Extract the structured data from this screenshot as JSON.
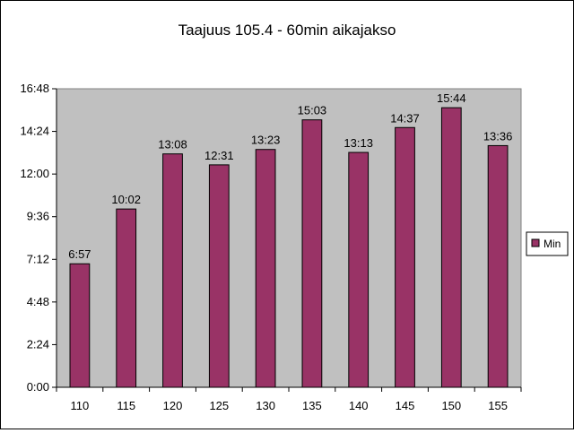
{
  "chart_data": {
    "type": "bar",
    "title": "Taajuus 105.4 - 60min aikajakso",
    "xlabel": "",
    "ylabel": "",
    "categories": [
      "110",
      "115",
      "120",
      "125",
      "130",
      "135",
      "140",
      "145",
      "150",
      "155"
    ],
    "series": [
      {
        "name": "Min",
        "values_minutes": [
          6.95,
          10.0333,
          13.1333,
          12.5167,
          13.3833,
          15.05,
          13.2167,
          14.6167,
          15.7333,
          13.6
        ],
        "data_labels": [
          "6:57",
          "10:02",
          "13:08",
          "12:31",
          "13:23",
          "15:03",
          "13:13",
          "14:37",
          "15:44",
          "13:36"
        ],
        "color": "#993366"
      }
    ],
    "y_axis": {
      "unit": "minutes",
      "min": 0,
      "max": 16.8,
      "tick_values": [
        0,
        2.4,
        4.8,
        7.2,
        9.6,
        12,
        14.4,
        16.8
      ],
      "tick_labels": [
        "0:00",
        "2:24",
        "4:48",
        "7:12",
        "9:36",
        "12:00",
        "14:24",
        "16:48"
      ]
    },
    "grid": false,
    "legend": {
      "position": "right",
      "entries": [
        "Min"
      ]
    },
    "colors": {
      "plot_background": "#c0c0c0",
      "bar_fill": "#993366",
      "bar_stroke": "#000000"
    }
  }
}
